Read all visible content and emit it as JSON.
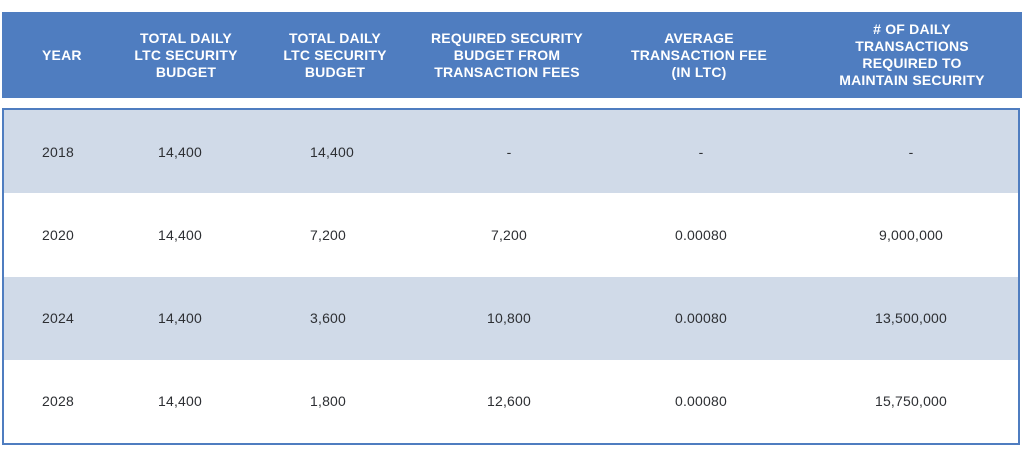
{
  "table": {
    "headers": [
      "YEAR",
      "TOTAL DAILY\nLTC SECURITY\nBUDGET",
      "TOTAL DAILY\nLTC SECURITY\nBUDGET",
      "REQUIRED SECURITY\nBUDGET FROM\nTRANSACTION FEES",
      "AVERAGE\nTRANSACTION FEE\n(IN LTC)",
      "# OF DAILY\nTRANSACTIONS\nREQUIRED TO\nMAINTAIN SECURITY"
    ],
    "rows": [
      [
        "2018",
        "14,400",
        "14,400",
        "-",
        "-",
        "-"
      ],
      [
        "2020",
        "14,400",
        "7,200",
        "7,200",
        "0.00080",
        "9,000,000"
      ],
      [
        "2024",
        "14,400",
        "3,600",
        "10,800",
        "0.00080",
        "13,500,000"
      ],
      [
        "2028",
        "14,400",
        "1,800",
        "12,600",
        "0.00080",
        "15,750,000"
      ]
    ]
  },
  "colors": {
    "header_bg": "#4f7dc0",
    "row_shade": "#d0dae8",
    "border": "#4f7dc0"
  }
}
